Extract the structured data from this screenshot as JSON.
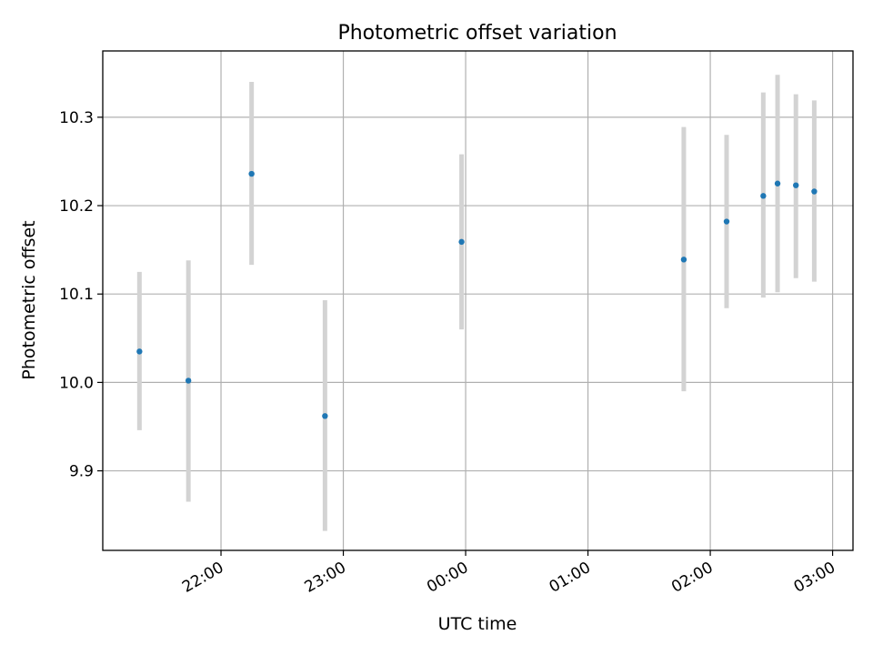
{
  "chart_data": {
    "type": "scatter",
    "title": "Photometric offset variation",
    "xlabel": "UTC time",
    "ylabel": "Photometric offset",
    "x_ticks": [
      "22:00",
      "23:00",
      "00:00",
      "01:00",
      "02:00",
      "03:00"
    ],
    "y_ticks": [
      "9.9",
      "10.0",
      "10.1",
      "10.2",
      "10.3"
    ],
    "xlim": [
      "21:02",
      "03:10"
    ],
    "ylim": [
      9.81,
      10.375
    ],
    "grid": true,
    "points": [
      {
        "x": "21:20",
        "y": 10.035,
        "err_low": 9.946,
        "err_high": 10.125
      },
      {
        "x": "21:44",
        "y": 10.002,
        "err_low": 9.865,
        "err_high": 10.138
      },
      {
        "x": "22:15",
        "y": 10.236,
        "err_low": 10.133,
        "err_high": 10.34
      },
      {
        "x": "22:51",
        "y": 9.962,
        "err_low": 9.832,
        "err_high": 10.093
      },
      {
        "x": "23:58",
        "y": 10.159,
        "err_low": 10.06,
        "err_high": 10.258
      },
      {
        "x": "01:47",
        "y": 10.139,
        "err_low": 9.99,
        "err_high": 10.289
      },
      {
        "x": "02:08",
        "y": 10.182,
        "err_low": 10.084,
        "err_high": 10.28
      },
      {
        "x": "02:26",
        "y": 10.211,
        "err_low": 10.096,
        "err_high": 10.328
      },
      {
        "x": "02:33",
        "y": 10.225,
        "err_low": 10.102,
        "err_high": 10.348
      },
      {
        "x": "02:42",
        "y": 10.223,
        "err_low": 10.118,
        "err_high": 10.326
      },
      {
        "x": "02:51",
        "y": 10.216,
        "err_low": 10.114,
        "err_high": 10.319
      }
    ],
    "colors": {
      "points": "#1f77b4",
      "error_bars": "#d3d3d3",
      "grid": "#b0b0b0"
    }
  }
}
